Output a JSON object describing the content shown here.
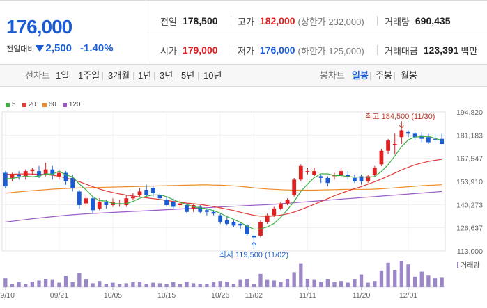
{
  "quote": {
    "price": "176,000",
    "change_label": "전일대비",
    "change_abs": "2,500",
    "change_pct": "-1.40%",
    "prev_close_label": "전일",
    "prev_close": "178,500",
    "high_label": "고가",
    "high": "182,000",
    "upper_limit": "(상한가 232,000)",
    "volume_label": "거래량",
    "volume": "690,435",
    "open_label": "시가",
    "open": "179,000",
    "low_label": "저가",
    "low": "176,000",
    "lower_limit": "(하한가 125,000)",
    "value_label": "거래대금",
    "value": "123,391",
    "value_unit": "백만"
  },
  "toolbar": {
    "line_label": "선차트",
    "line_periods": [
      "1일",
      "1주일",
      "3개월",
      "1년",
      "3년",
      "5년",
      "10년"
    ],
    "candle_label": "봉차트",
    "candle_periods": [
      "일봉",
      "주봉",
      "월봉"
    ],
    "active_candle": "일봉"
  },
  "colors": {
    "up": "#e02020",
    "down": "#1a5cd6",
    "ma5": "#3cb043",
    "ma20": "#e03a3a",
    "ma60": "#f08a24",
    "ma120": "#9b59c6",
    "volume": "#9b87c8"
  },
  "chart_data": {
    "type": "candlestick",
    "legend": [
      {
        "name": "5",
        "color": "#3cb043"
      },
      {
        "name": "20",
        "color": "#e03a3a"
      },
      {
        "name": "60",
        "color": "#f08a24"
      },
      {
        "name": "120",
        "color": "#9b59c6"
      }
    ],
    "y_ticks": [
      "194,820",
      "181,183",
      "167,547",
      "153,910",
      "140,273",
      "126,637",
      "113,000"
    ],
    "ylim": [
      113000,
      194820
    ],
    "x_ticks": [
      "09/10",
      "09/21",
      "10/05",
      "10/15",
      "10/26",
      "11/02",
      "11/11",
      "11/20",
      "12/01"
    ],
    "x_tick_index": [
      0,
      8,
      16,
      24,
      32,
      37,
      45,
      53,
      60
    ],
    "annotations": {
      "high": "최고 184,500 (11/30)",
      "low": "최저 119,500 (11/02)",
      "high_index": 59,
      "low_index": 37,
      "high_value": 184500,
      "low_value": 119500
    },
    "volume_label": "거래량",
    "candles": [
      [
        159000,
        151000,
        160000,
        150000
      ],
      [
        156000,
        158000,
        159000,
        154000
      ],
      [
        158000,
        157000,
        160000,
        155000
      ],
      [
        157000,
        160000,
        161000,
        155000
      ],
      [
        160000,
        161000,
        162000,
        158000
      ],
      [
        160000,
        157000,
        163000,
        156000
      ],
      [
        158000,
        161000,
        165000,
        157000
      ],
      [
        161000,
        158000,
        163000,
        155000
      ],
      [
        157000,
        159000,
        161000,
        155000
      ],
      [
        159000,
        154000,
        160000,
        152000
      ],
      [
        156000,
        150000,
        158000,
        148000
      ],
      [
        148000,
        140000,
        149000,
        138000
      ],
      [
        141000,
        144000,
        146000,
        139000
      ],
      [
        144000,
        137000,
        145000,
        135000
      ],
      [
        138000,
        142000,
        144000,
        137000
      ],
      [
        142000,
        140000,
        143000,
        138000
      ],
      [
        140000,
        142000,
        144000,
        139000
      ],
      [
        141000,
        141000,
        143000,
        139000
      ],
      [
        140000,
        144000,
        146000,
        139000
      ],
      [
        144000,
        145000,
        147000,
        143000
      ],
      [
        146000,
        148000,
        150000,
        145000
      ],
      [
        149000,
        146000,
        152000,
        145000
      ],
      [
        150000,
        147000,
        151000,
        145000
      ],
      [
        146000,
        144000,
        147000,
        143000
      ],
      [
        143000,
        140000,
        145000,
        139000
      ],
      [
        142000,
        139000,
        144000,
        138000
      ],
      [
        140000,
        141000,
        143000,
        138000
      ],
      [
        140000,
        136000,
        141000,
        135000
      ],
      [
        138000,
        140000,
        141000,
        136000
      ],
      [
        139000,
        136000,
        140000,
        135000
      ],
      [
        137000,
        136000,
        138000,
        134000
      ],
      [
        136000,
        135000,
        137000,
        134000
      ],
      [
        134000,
        130000,
        135000,
        129000
      ],
      [
        131000,
        129000,
        133000,
        128000
      ],
      [
        130000,
        128000,
        131000,
        127000
      ],
      [
        129000,
        128000,
        130000,
        126000
      ],
      [
        128000,
        123000,
        129000,
        122000
      ],
      [
        122000,
        121000,
        123000,
        119500
      ],
      [
        122000,
        130000,
        131000,
        121000
      ],
      [
        130000,
        134000,
        135000,
        129000
      ],
      [
        134000,
        138000,
        139000,
        133000
      ],
      [
        138000,
        141000,
        142000,
        137000
      ],
      [
        141000,
        143000,
        144000,
        140000
      ],
      [
        146000,
        155000,
        156000,
        145000
      ],
      [
        155000,
        163000,
        164000,
        154000
      ],
      [
        160000,
        160000,
        162000,
        158000
      ],
      [
        158000,
        160000,
        162000,
        157000
      ],
      [
        157000,
        156000,
        158000,
        153000
      ],
      [
        156000,
        153000,
        157000,
        151000
      ],
      [
        157000,
        158000,
        159000,
        155000
      ],
      [
        158000,
        160000,
        162000,
        157000
      ],
      [
        158000,
        157000,
        160000,
        155000
      ],
      [
        156000,
        154000,
        158000,
        153000
      ],
      [
        157000,
        154000,
        158000,
        152000
      ],
      [
        154000,
        157000,
        158000,
        153000
      ],
      [
        158000,
        162000,
        163000,
        157000
      ],
      [
        164000,
        172000,
        173000,
        163000
      ],
      [
        172000,
        178000,
        179000,
        170000
      ],
      [
        176000,
        176000,
        182000,
        170000
      ],
      [
        180000,
        184000,
        184500,
        176000
      ],
      [
        183000,
        182000,
        184000,
        180000
      ],
      [
        182000,
        180000,
        183000,
        178000
      ],
      [
        181000,
        179000,
        183000,
        177000
      ],
      [
        180000,
        177000,
        182000,
        176000
      ],
      [
        179000,
        178500,
        182000,
        177000
      ],
      [
        179000,
        176000,
        182000,
        176000
      ]
    ],
    "ma5": [
      155400,
      155700,
      156400,
      157100,
      156600,
      157200,
      158400,
      158200,
      160000,
      157800,
      156600,
      152400,
      149000,
      145000,
      142600,
      142400,
      141000,
      140800,
      140800,
      142200,
      144000,
      145200,
      146000,
      146000,
      145000,
      143200,
      141600,
      140400,
      139000,
      138400,
      137800,
      136800,
      135200,
      133200,
      131600,
      129800,
      127600,
      125800,
      126000,
      127200,
      129200,
      132800,
      137200,
      142200,
      148000,
      152400,
      156200,
      158400,
      158400,
      157400,
      157400,
      156800,
      156400,
      156600,
      156400,
      156800,
      159800,
      163800,
      169000,
      174400,
      178400,
      180000,
      180200,
      180400,
      179300,
      178100
    ],
    "ma20": [
      158000,
      158200,
      158300,
      158400,
      158300,
      158200,
      158000,
      157600,
      156900,
      156000,
      155000,
      153800,
      152300,
      150800,
      149500,
      148300,
      147400,
      146600,
      145900,
      145300,
      144800,
      144300,
      143800,
      143300,
      142700,
      142200,
      141800,
      141200,
      140800,
      140400,
      139800,
      139100,
      138400,
      137600,
      136800,
      135800,
      134900,
      134000,
      133500,
      133400,
      133600,
      134100,
      134800,
      135900,
      137300,
      138900,
      140500,
      142100,
      143800,
      145500,
      147000,
      148400,
      149700,
      150900,
      152300,
      153800,
      155400,
      157100,
      158900,
      160700,
      162300,
      163700,
      164800,
      165700,
      166400,
      166900
    ],
    "ma60": [
      147000,
      147400,
      147800,
      148200,
      148500,
      148800,
      149100,
      149400,
      149600,
      149800,
      150000,
      150100,
      150200,
      150300,
      150400,
      150500,
      150600,
      150700,
      150800,
      150900,
      151000,
      151100,
      151200,
      151300,
      151400,
      151500,
      151600,
      151700,
      151800,
      151900,
      151900,
      151800,
      151700,
      151500,
      151300,
      151000,
      150600,
      150200,
      149800,
      149500,
      149300,
      149100,
      148900,
      148800,
      148800,
      148800,
      148800,
      148900,
      149000,
      149100,
      149200,
      149300,
      149300,
      149300,
      149300,
      149400,
      149600,
      149900,
      150200,
      150500,
      150800,
      151100,
      151400,
      151600,
      151800,
      152000
    ],
    "ma120": [
      130000,
      130500,
      131000,
      131500,
      132000,
      132400,
      132800,
      133200,
      133600,
      134000,
      134300,
      134600,
      134900,
      135100,
      135300,
      135500,
      135700,
      135900,
      136100,
      136300,
      136500,
      136700,
      136900,
      137100,
      137300,
      137500,
      137700,
      137900,
      138100,
      138300,
      138500,
      138700,
      138900,
      139100,
      139300,
      139500,
      139700,
      139900,
      140100,
      140300,
      140500,
      140800,
      141100,
      141400,
      141700,
      142000,
      142300,
      142600,
      142900,
      143200,
      143500,
      143800,
      144100,
      144400,
      144700,
      145000,
      145300,
      145600,
      145900,
      146200,
      146500,
      146800,
      147100,
      147400,
      147700,
      148000
    ],
    "volume": [
      32,
      12,
      18,
      10,
      20,
      24,
      30,
      26,
      16,
      40,
      18,
      52,
      28,
      14,
      22,
      12,
      16,
      10,
      14,
      18,
      20,
      12,
      16,
      14,
      12,
      18,
      10,
      20,
      14,
      12,
      12,
      18,
      22,
      20,
      12,
      26,
      30,
      12,
      48,
      26,
      24,
      18,
      30,
      54,
      86,
      30,
      26,
      18,
      28,
      18,
      22,
      16,
      28,
      46,
      16,
      22,
      58,
      88,
      60,
      95,
      82,
      38,
      56,
      42,
      32,
      34
    ]
  }
}
